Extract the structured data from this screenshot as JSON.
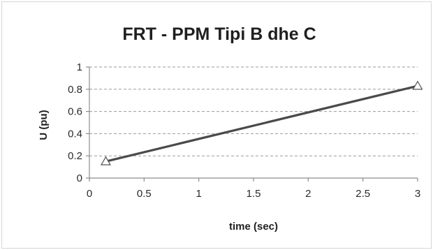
{
  "chart_data": {
    "type": "line",
    "title": "FRT - PPM Tipi B dhe C",
    "xlabel": "time (sec)",
    "ylabel": "U (pu)",
    "xlim": [
      0,
      3
    ],
    "ylim": [
      0,
      1
    ],
    "x_ticks": [
      0,
      0.5,
      1,
      1.5,
      2,
      2.5,
      3
    ],
    "y_ticks": [
      0,
      0.2,
      0.4,
      0.6,
      0.8,
      1
    ],
    "x_tick_labels": [
      "0",
      "0.5",
      "1",
      "1.5",
      "2",
      "2.5",
      "3"
    ],
    "y_tick_labels": [
      "0",
      "0.2",
      "0.4",
      "0.6",
      "0.8",
      "1"
    ],
    "grid": "horizontal-dashed",
    "legend": "none",
    "series": [
      {
        "x": [
          0.15,
          3
        ],
        "y": [
          0.15,
          0.83
        ],
        "marker": "triangle-open",
        "color": "#4a4a4a"
      }
    ]
  }
}
